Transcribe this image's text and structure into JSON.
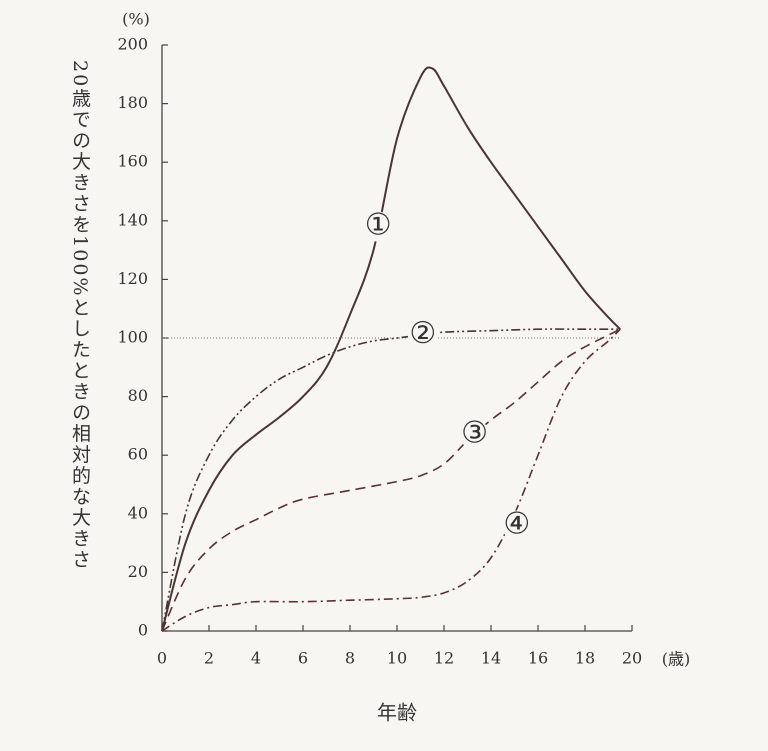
{
  "chart_data": {
    "type": "line",
    "y_unit": "(%)",
    "x_unit": "(歳)",
    "y_label": "20歳での大きさを100%としたときの相対的な大きさ",
    "x_label": "年齢",
    "xlim": [
      0,
      20
    ],
    "xticks": [
      0,
      2,
      4,
      6,
      8,
      10,
      12,
      14,
      16,
      18,
      20
    ],
    "ylim": [
      0,
      200
    ],
    "yticks": [
      0,
      20,
      40,
      60,
      80,
      100,
      120,
      140,
      160,
      180,
      200
    ],
    "hline": 100,
    "series": [
      {
        "name": "①",
        "color": "#4a3434",
        "x": [
          0,
          1,
          2,
          3,
          4,
          5,
          6,
          7,
          8,
          9,
          10,
          11,
          11.5,
          12,
          13,
          14,
          15,
          16,
          17,
          18,
          19,
          19.5
        ],
        "values": [
          0,
          30,
          48,
          60,
          67,
          73,
          80,
          90,
          108,
          130,
          168,
          189,
          192,
          186,
          172,
          160,
          149,
          138,
          127,
          116,
          107,
          103
        ]
      },
      {
        "name": "②",
        "color": "#4a3434",
        "x": [
          0,
          1,
          2,
          3,
          4,
          5,
          6,
          7,
          8,
          9,
          10,
          11,
          12,
          14,
          16,
          18,
          19.5
        ],
        "values": [
          0,
          40,
          60,
          72,
          80,
          86,
          90,
          94,
          97,
          99,
          100,
          101,
          102,
          102.5,
          103,
          103,
          103
        ]
      },
      {
        "name": "③",
        "color": "#5a3030",
        "x": [
          0,
          1,
          2,
          3,
          4,
          5,
          6,
          8,
          10,
          11,
          12,
          13,
          14,
          15,
          16,
          17,
          18,
          19,
          19.5
        ],
        "values": [
          0,
          18,
          28,
          34,
          38,
          42,
          45,
          48,
          51,
          53,
          57,
          65,
          72,
          78,
          85,
          92,
          97,
          101,
          103
        ]
      },
      {
        "name": "④",
        "color": "#5a3030",
        "x": [
          0,
          1,
          2,
          3,
          4,
          6,
          8,
          10,
          11,
          12,
          13,
          14,
          15,
          16,
          17,
          18,
          19,
          19.5
        ],
        "values": [
          0,
          5,
          8,
          9,
          10,
          10,
          10.5,
          11,
          11.5,
          13,
          17,
          25,
          40,
          60,
          80,
          92,
          99,
          103
        ]
      }
    ]
  }
}
